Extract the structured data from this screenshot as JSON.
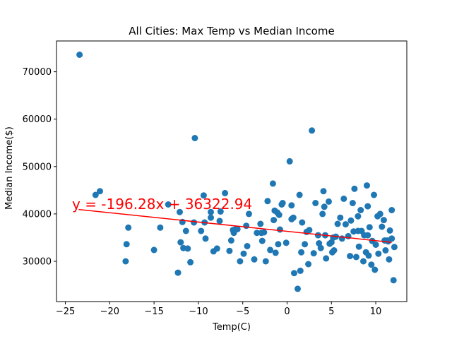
{
  "chart_data": {
    "type": "scatter",
    "title": "All Cities: Max Temp vs Median Income",
    "xlabel": "Temp(C)",
    "ylabel": "Median Income($)",
    "xlim": [
      -26,
      13.5
    ],
    "ylim": [
      21500,
      76500
    ],
    "xticks": [
      -25,
      -20,
      -15,
      -10,
      -5,
      0,
      5,
      10
    ],
    "yticks": [
      30000,
      40000,
      50000,
      60000,
      70000
    ],
    "grid": false,
    "colors": {
      "points": "#1f77b4",
      "regression": "#ff0000"
    },
    "regression": {
      "equation": "y = -196.28x + 36322.94",
      "slope": -196.28,
      "intercept": 36322.94,
      "x_range": [
        -23.5,
        11.8
      ]
    },
    "points": [
      [
        -23.4,
        73600
      ],
      [
        -21.6,
        44000
      ],
      [
        -21.1,
        44800
      ],
      [
        -18.2,
        30000
      ],
      [
        -18.1,
        33600
      ],
      [
        -17.9,
        37100
      ],
      [
        -15.0,
        32400
      ],
      [
        -14.3,
        37100
      ],
      [
        -13.4,
        42000
      ],
      [
        -12.3,
        27600
      ],
      [
        -12.1,
        40400
      ],
      [
        -12.0,
        34000
      ],
      [
        -11.8,
        38300
      ],
      [
        -11.7,
        32800
      ],
      [
        -11.4,
        36400
      ],
      [
        -11.2,
        32700
      ],
      [
        -10.9,
        29800
      ],
      [
        -10.5,
        38200
      ],
      [
        -10.4,
        56000
      ],
      [
        -9.7,
        36400
      ],
      [
        -9.4,
        43900
      ],
      [
        -9.3,
        38200
      ],
      [
        -9.2,
        34800
      ],
      [
        -8.6,
        39200
      ],
      [
        -8.6,
        40400
      ],
      [
        -8.3,
        32100
      ],
      [
        -7.9,
        32700
      ],
      [
        -7.6,
        38500
      ],
      [
        -7.5,
        40500
      ],
      [
        -7.0,
        44400
      ],
      [
        -6.5,
        32200
      ],
      [
        -6.3,
        34400
      ],
      [
        -6.1,
        36600
      ],
      [
        -6.0,
        36000
      ],
      [
        -5.8,
        36800
      ],
      [
        -5.6,
        36800
      ],
      [
        -5.3,
        30000
      ],
      [
        -4.9,
        31600
      ],
      [
        -4.6,
        37500
      ],
      [
        -4.5,
        33200
      ],
      [
        -4.3,
        40000
      ],
      [
        -3.7,
        30400
      ],
      [
        -3.4,
        36000
      ],
      [
        -3.0,
        37900
      ],
      [
        -2.9,
        36000
      ],
      [
        -2.8,
        34300
      ],
      [
        -2.6,
        36100
      ],
      [
        -2.4,
        30000
      ],
      [
        -2.2,
        42700
      ],
      [
        -1.9,
        32400
      ],
      [
        -1.6,
        46400
      ],
      [
        -1.5,
        38700
      ],
      [
        -1.4,
        40700
      ],
      [
        -1.3,
        31800
      ],
      [
        -1.1,
        40300
      ],
      [
        -1.0,
        33600
      ],
      [
        -0.9,
        39800
      ],
      [
        -0.8,
        36700
      ],
      [
        -0.6,
        42000
      ],
      [
        -0.5,
        42300
      ],
      [
        -0.1,
        33900
      ],
      [
        0.3,
        51100
      ],
      [
        0.5,
        41800
      ],
      [
        0.5,
        38900
      ],
      [
        0.7,
        39200
      ],
      [
        0.8,
        27500
      ],
      [
        1.2,
        24200
      ],
      [
        1.4,
        44000
      ],
      [
        1.5,
        28000
      ],
      [
        1.6,
        31900
      ],
      [
        1.7,
        38200
      ],
      [
        2.0,
        33600
      ],
      [
        2.2,
        36200
      ],
      [
        2.4,
        29400
      ],
      [
        2.5,
        36600
      ],
      [
        2.8,
        57600
      ],
      [
        3.0,
        31700
      ],
      [
        3.2,
        42300
      ],
      [
        3.5,
        35500
      ],
      [
        3.6,
        33800
      ],
      [
        3.8,
        32800
      ],
      [
        4.0,
        40000
      ],
      [
        4.1,
        44800
      ],
      [
        4.2,
        41500
      ],
      [
        4.3,
        35500
      ],
      [
        4.4,
        30600
      ],
      [
        4.7,
        42600
      ],
      [
        4.8,
        33700
      ],
      [
        5.0,
        34000
      ],
      [
        5.1,
        31900
      ],
      [
        5.2,
        35000
      ],
      [
        5.3,
        32300
      ],
      [
        5.5,
        35200
      ],
      [
        5.7,
        37900
      ],
      [
        6.0,
        39200
      ],
      [
        6.2,
        34800
      ],
      [
        6.4,
        43200
      ],
      [
        6.6,
        37800
      ],
      [
        6.9,
        35300
      ],
      [
        7.1,
        31100
      ],
      [
        7.2,
        38600
      ],
      [
        7.4,
        42300
      ],
      [
        7.5,
        36300
      ],
      [
        7.6,
        45300
      ],
      [
        7.8,
        30900
      ],
      [
        8.0,
        36400
      ],
      [
        8.1,
        33100
      ],
      [
        8.3,
        40800
      ],
      [
        8.4,
        36400
      ],
      [
        8.6,
        30000
      ],
      [
        8.7,
        35500
      ],
      [
        8.9,
        31900
      ],
      [
        9.1,
        41600
      ],
      [
        9.2,
        31200
      ],
      [
        9.3,
        37200
      ],
      [
        9.5,
        29300
      ],
      [
        9.6,
        34300
      ],
      [
        9.8,
        44000
      ],
      [
        9.9,
        28200
      ],
      [
        10.0,
        33500
      ],
      [
        10.2,
        39500
      ],
      [
        10.3,
        31600
      ],
      [
        10.5,
        40000
      ],
      [
        10.7,
        37300
      ],
      [
        10.9,
        38700
      ],
      [
        11.0,
        34400
      ],
      [
        11.1,
        32300
      ],
      [
        11.3,
        34400
      ],
      [
        11.4,
        34200
      ],
      [
        11.5,
        30400
      ],
      [
        11.6,
        36500
      ],
      [
        11.8,
        34800
      ],
      [
        12.0,
        26000
      ],
      [
        12.1,
        33000
      ],
      [
        9.0,
        46000
      ],
      [
        11.8,
        40800
      ],
      [
        8.0,
        39500
      ],
      [
        9.1,
        35500
      ]
    ]
  }
}
